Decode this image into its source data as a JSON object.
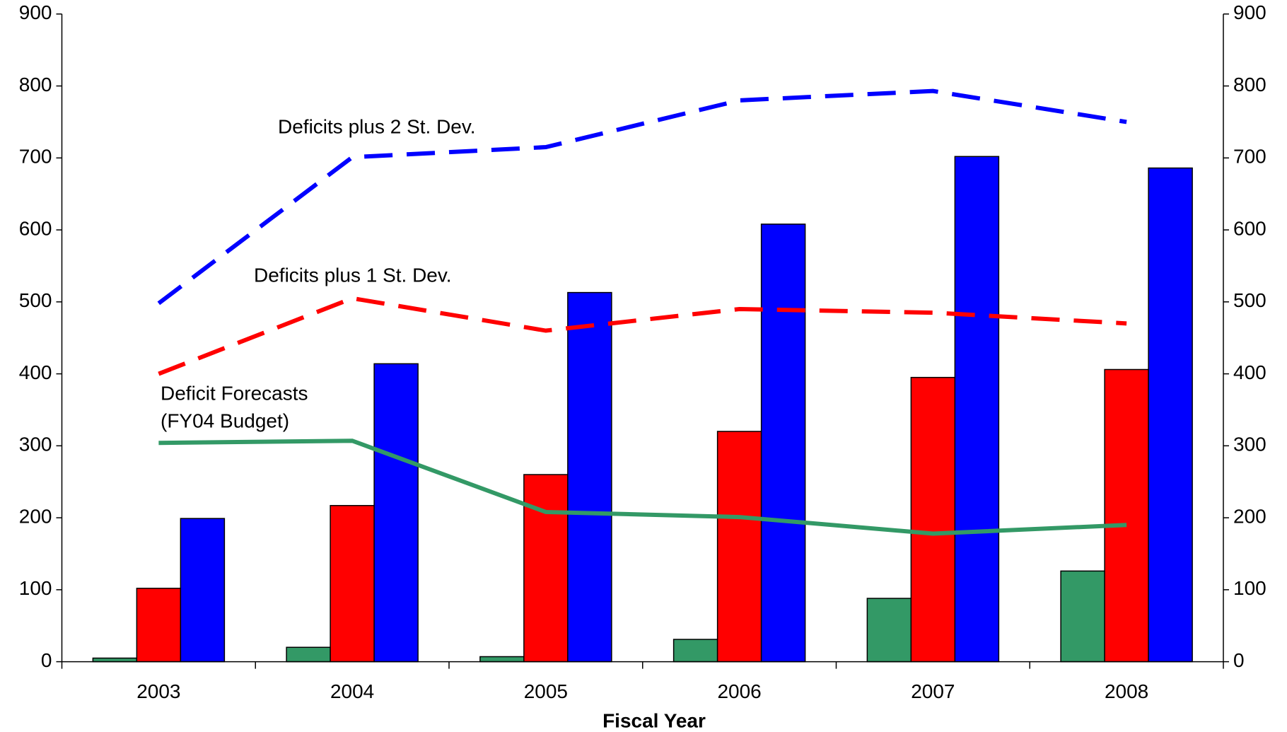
{
  "chart_data": {
    "type": "bar_line",
    "x_label": "Fiscal Year",
    "categories": [
      "2003",
      "2004",
      "2005",
      "2006",
      "2007",
      "2008"
    ],
    "series": [
      {
        "kind": "bar",
        "color": "#339966",
        "values": [
          5,
          20,
          7,
          31,
          88,
          126
        ]
      },
      {
        "kind": "bar",
        "color": "#ff0000",
        "values": [
          102,
          217,
          260,
          320,
          395,
          406
        ]
      },
      {
        "kind": "bar",
        "color": "#0000ff",
        "values": [
          199,
          414,
          513,
          608,
          702,
          686
        ]
      },
      {
        "kind": "line",
        "name": [
          "Deficit Forecasts",
          "(FY04 Budget)"
        ],
        "color": "#339966",
        "dashed": false,
        "values": [
          304,
          307,
          208,
          201,
          178,
          190
        ]
      },
      {
        "kind": "line",
        "name": [
          "Deficits plus 1 St. Dev."
        ],
        "color": "#ff0000",
        "dashed": true,
        "values": [
          400,
          505,
          460,
          490,
          485,
          470
        ]
      },
      {
        "kind": "line",
        "name": [
          "Deficits plus 2 St. Dev."
        ],
        "color": "#0000ff",
        "dashed": true,
        "values": [
          498,
          701,
          715,
          780,
          793,
          750
        ]
      }
    ],
    "ylim": [
      0,
      900
    ],
    "yticks": [
      0,
      100,
      200,
      300,
      400,
      500,
      600,
      700,
      800,
      900
    ],
    "y2lim": [
      0,
      900
    ],
    "y2ticks": [
      0,
      100,
      200,
      300,
      400,
      500,
      600,
      700,
      800,
      900
    ],
    "grid": false
  }
}
